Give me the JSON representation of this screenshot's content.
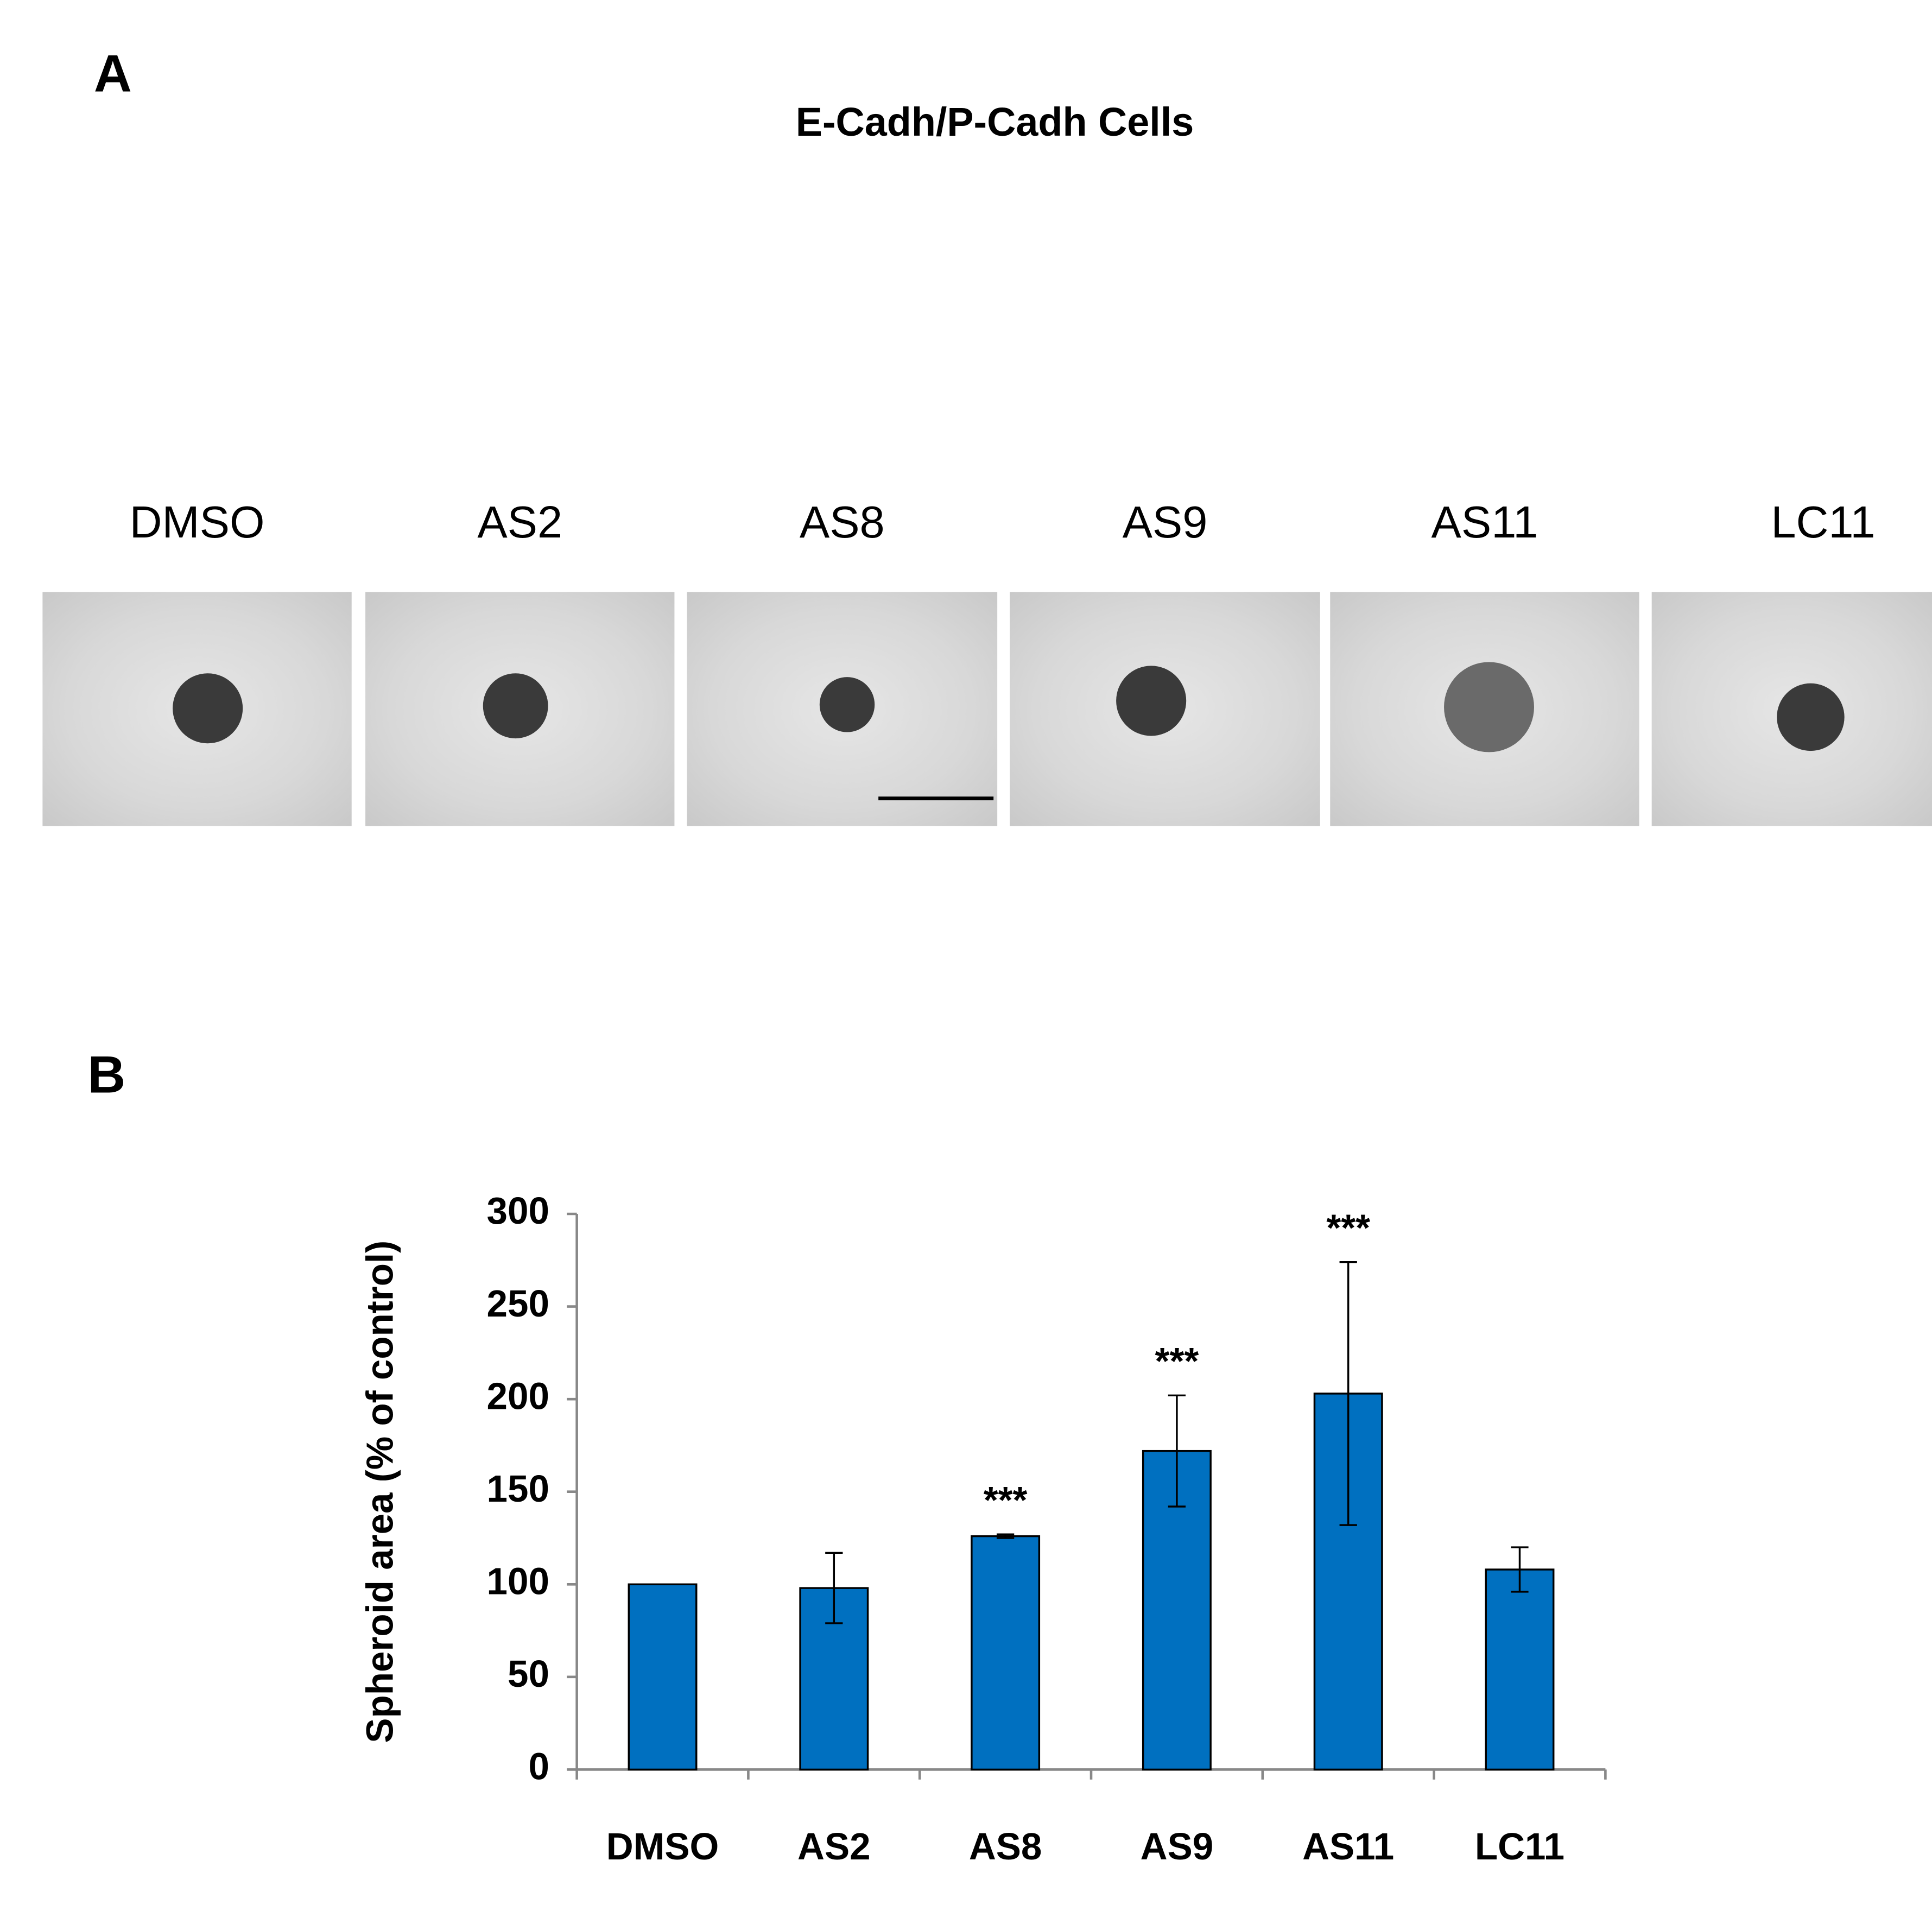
{
  "panel_a": {
    "label": "A",
    "title": "E-Cadh/P-Cadh Cells",
    "images": [
      "DMSO",
      "AS2",
      "AS8",
      "AS9",
      "AS11",
      "LC11"
    ]
  },
  "panel_b": {
    "label": "B"
  },
  "chart_data": {
    "type": "bar",
    "y_label": "Spheroid area (% of control)",
    "categories": [
      "DMSO",
      "AS2",
      "AS8",
      "AS9",
      "AS11",
      "LC11"
    ],
    "values": [
      100,
      98,
      126,
      172,
      203,
      108
    ],
    "errors": [
      0,
      19,
      1,
      30,
      71,
      12
    ],
    "significance": [
      null,
      null,
      "***",
      "***",
      "***",
      null
    ],
    "color": "#0070c0",
    "ylim": [
      0,
      300
    ],
    "yticks": [
      0,
      50,
      100,
      150,
      200,
      250,
      300
    ],
    "grid": false
  }
}
